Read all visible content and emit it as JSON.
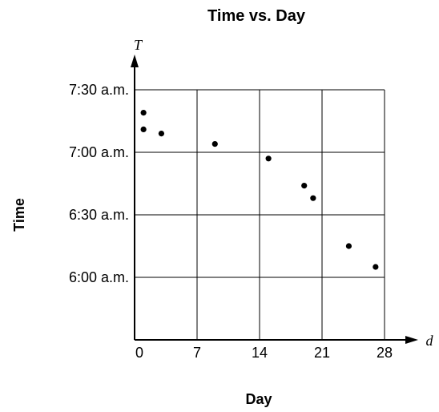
{
  "chart_data": {
    "type": "scatter",
    "title": "Time vs. Day",
    "xlabel": "Day",
    "ylabel": "Time",
    "x_variable": "d",
    "y_variable": "T",
    "xlim": [
      0,
      28
    ],
    "ylim": [
      "5:30 a.m.",
      "7:30 a.m."
    ],
    "x_ticks": [
      0,
      7,
      14,
      21,
      28
    ],
    "y_ticks": [
      "6:00 a.m.",
      "6:30 a.m.",
      "7:00 a.m.",
      "7:30 a.m."
    ],
    "grid": true,
    "points": [
      {
        "x": 1,
        "y": "7:19 a.m."
      },
      {
        "x": 1,
        "y": "7:11 a.m."
      },
      {
        "x": 3,
        "y": "7:09 a.m."
      },
      {
        "x": 9,
        "y": "7:04 a.m."
      },
      {
        "x": 15,
        "y": "6:57 a.m."
      },
      {
        "x": 19,
        "y": "6:44 a.m."
      },
      {
        "x": 20,
        "y": "6:38 a.m."
      },
      {
        "x": 24,
        "y": "6:15 a.m."
      },
      {
        "x": 27,
        "y": "6:05 a.m."
      }
    ]
  }
}
